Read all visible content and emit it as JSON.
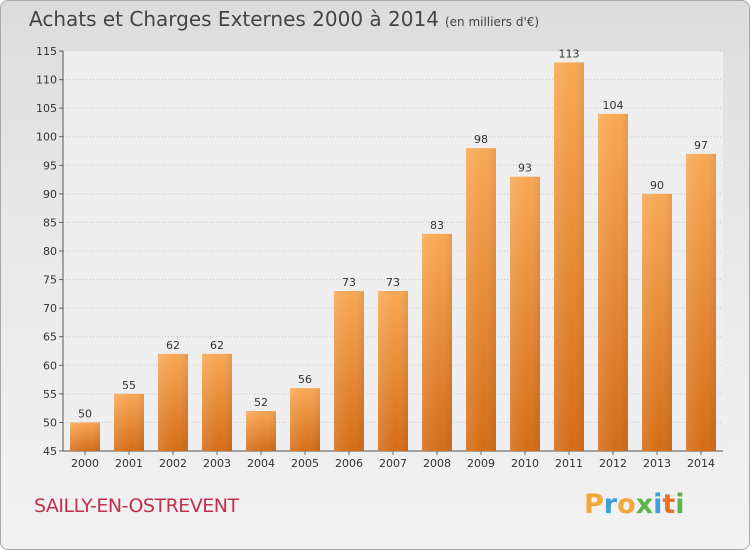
{
  "title": "Achats et Charges Externes 2000 à 2014",
  "subtitle": "(en milliers d'€)",
  "commune": "SAILLY-EN-OSTREVENT",
  "logo": {
    "letters": [
      "P",
      "r",
      "o",
      "x",
      "i",
      "t",
      "i"
    ],
    "colors": [
      "#f3a73a",
      "#3aa0d8",
      "#f3a73a",
      "#5ab54a",
      "#3aa0d8",
      "#e8702a",
      "#5ab54a"
    ]
  },
  "colors": {
    "bar_light": "#f7a552",
    "bar_dark": "#d66f1a",
    "text": "#333333"
  },
  "chart_data": {
    "type": "bar",
    "title": "Achats et Charges Externes 2000 à 2014",
    "subtitle": "(en milliers d'€)",
    "categories": [
      "2000",
      "2001",
      "2002",
      "2003",
      "2004",
      "2005",
      "2006",
      "2007",
      "2008",
      "2009",
      "2010",
      "2011",
      "2012",
      "2013",
      "2014"
    ],
    "values": [
      50,
      55,
      62,
      62,
      52,
      56,
      73,
      73,
      83,
      98,
      93,
      113,
      104,
      90,
      97
    ],
    "ylim": [
      45,
      115
    ],
    "yticks": [
      45,
      50,
      55,
      60,
      65,
      70,
      75,
      80,
      85,
      90,
      95,
      100,
      105,
      110,
      115
    ],
    "grid": true,
    "xlabel": "",
    "ylabel": ""
  }
}
